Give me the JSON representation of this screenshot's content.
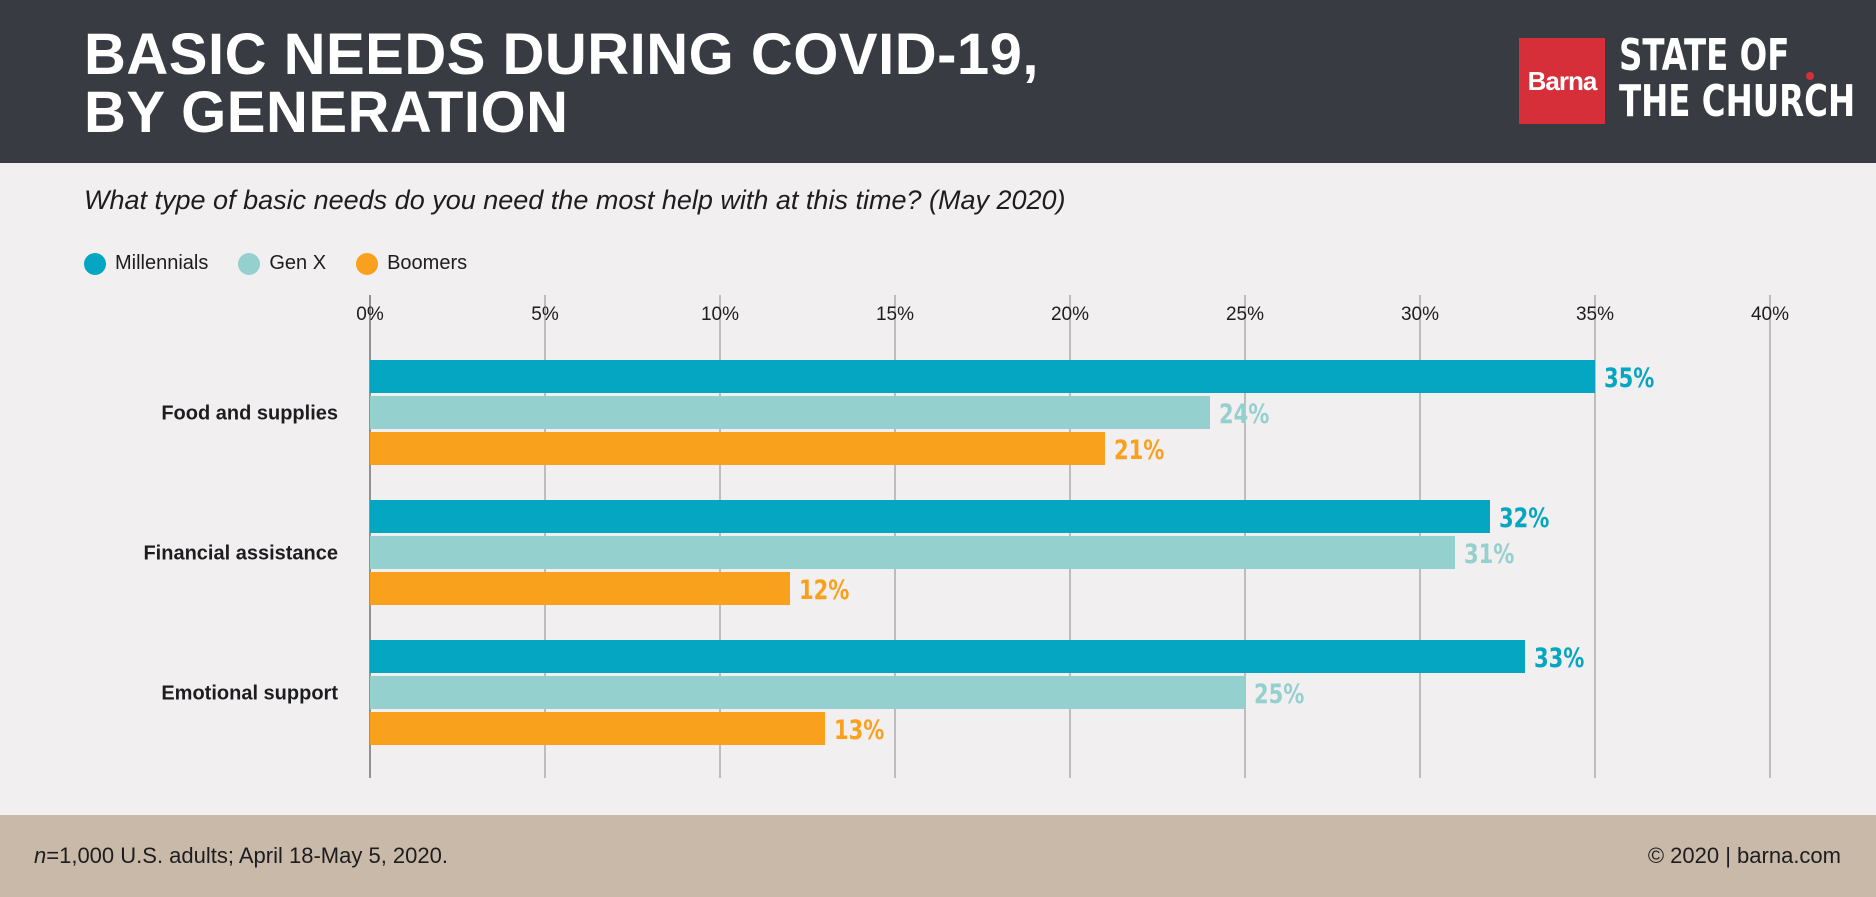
{
  "header": {
    "title_line1": "BASIC NEEDS DURING COVID-19,",
    "title_line2": "BY GENERATION",
    "logo_box": "Barna",
    "logo_line1": "STATE OF",
    "logo_line2": "THE CHURCH"
  },
  "question": "What type of basic needs do you need the most help with at this time? (May 2020)",
  "footer": {
    "n_label": "n",
    "note": "=1,000 U.S. adults; April 18-May 5, 2020.",
    "copyright": "© 2020 | barna.com"
  },
  "colors": {
    "Millennials": "#05a6c1",
    "Gen X": "#94d0cd",
    "Boomers": "#f9a11d",
    "grid": "#8a8a8a",
    "header_bg": "#383b41",
    "footer_bg": "#c9b9a9",
    "logo_red": "#d62f3a"
  },
  "chart_data": {
    "type": "bar",
    "orientation": "horizontal",
    "categories": [
      "Food and supplies",
      "Financial assistance",
      "Emotional support"
    ],
    "series": [
      {
        "name": "Millennials",
        "values": [
          35,
          32,
          33
        ]
      },
      {
        "name": "Gen X",
        "values": [
          24,
          31,
          25
        ]
      },
      {
        "name": "Boomers",
        "values": [
          21,
          12,
          13
        ]
      }
    ],
    "data_labels": [
      [
        "35%",
        "32%",
        "33%"
      ],
      [
        "24%",
        "31%",
        "25%"
      ],
      [
        "21%",
        "12%",
        "13%"
      ]
    ],
    "xlim": [
      0,
      40
    ],
    "x_ticks": [
      0,
      5,
      10,
      15,
      20,
      25,
      30,
      35,
      40
    ],
    "x_tick_labels": [
      "0%",
      "5%",
      "10%",
      "15%",
      "20%",
      "25%",
      "30%",
      "35%",
      "40%"
    ],
    "grid": true,
    "legend_position": "top-left"
  }
}
